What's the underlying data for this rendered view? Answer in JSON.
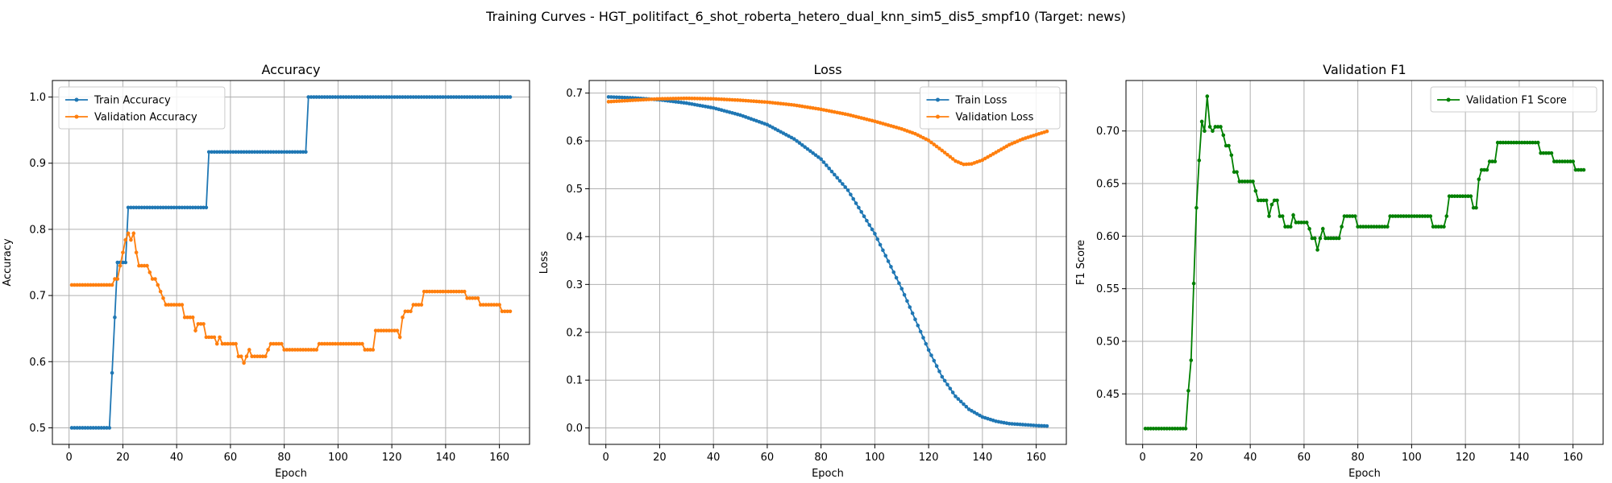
{
  "suptitle": "Training Curves - HGT_politifact_6_shot_roberta_hetero_dual_knn_sim5_dis5_smpf10 (Target: news)",
  "colors": {
    "train": "#1f77b4",
    "val": "#ff7f0e",
    "f1": "#008000",
    "grid": "#b0b0b0"
  },
  "chart_data": [
    {
      "type": "line",
      "title": "Accuracy",
      "xlabel": "Epoch",
      "ylabel": "Accuracy",
      "xlim": [
        -6.2,
        171.2
      ],
      "ylim": [
        0.475,
        1.025
      ],
      "xticks": [
        0,
        20,
        40,
        60,
        80,
        100,
        120,
        140,
        160
      ],
      "yticks": [
        0.5,
        0.6,
        0.7,
        0.8,
        0.9,
        1.0
      ],
      "ytick_labels": [
        "0.5",
        "0.6",
        "0.7",
        "0.8",
        "0.9",
        "1.0"
      ],
      "grid": true,
      "legend": "upper-left",
      "series": [
        {
          "name": "Train Accuracy",
          "color": "#1f77b4",
          "steps": [
            [
              1,
              0.5
            ],
            [
              16,
              0.583
            ],
            [
              17,
              0.667
            ],
            [
              18,
              0.75
            ],
            [
              22,
              0.833
            ],
            [
              52,
              0.917
            ],
            [
              89,
              1.0
            ]
          ]
        },
        {
          "name": "Validation Accuracy",
          "color": "#ff7f0e",
          "steps": [
            [
              1,
              0.716
            ],
            [
              17,
              0.725
            ],
            [
              19,
              0.745
            ],
            [
              20,
              0.765
            ],
            [
              21,
              0.784
            ],
            [
              22,
              0.794
            ],
            [
              23,
              0.784
            ],
            [
              24,
              0.794
            ],
            [
              25,
              0.765
            ],
            [
              26,
              0.745
            ],
            [
              30,
              0.735
            ],
            [
              31,
              0.725
            ],
            [
              33,
              0.716
            ],
            [
              34,
              0.706
            ],
            [
              35,
              0.696
            ],
            [
              36,
              0.686
            ],
            [
              43,
              0.667
            ],
            [
              47,
              0.647
            ],
            [
              48,
              0.657
            ],
            [
              51,
              0.637
            ],
            [
              55,
              0.627
            ],
            [
              56,
              0.637
            ],
            [
              57,
              0.627
            ],
            [
              63,
              0.608
            ],
            [
              65,
              0.598
            ],
            [
              66,
              0.608
            ],
            [
              67,
              0.618
            ],
            [
              68,
              0.608
            ],
            [
              74,
              0.618
            ],
            [
              75,
              0.627
            ],
            [
              80,
              0.618
            ],
            [
              93,
              0.627
            ],
            [
              110,
              0.618
            ],
            [
              114,
              0.647
            ],
            [
              123,
              0.637
            ],
            [
              124,
              0.667
            ],
            [
              125,
              0.676
            ],
            [
              128,
              0.686
            ],
            [
              132,
              0.706
            ],
            [
              148,
              0.696
            ],
            [
              153,
              0.686
            ],
            [
              161,
              0.676
            ]
          ]
        }
      ]
    },
    {
      "type": "line",
      "title": "Loss",
      "xlabel": "Epoch",
      "ylabel": "Loss",
      "xlim": [
        -6.2,
        171.2
      ],
      "ylim": [
        -0.0343,
        0.7263
      ],
      "xticks": [
        0,
        20,
        40,
        60,
        80,
        100,
        120,
        140,
        160
      ],
      "yticks": [
        0.0,
        0.1,
        0.2,
        0.3,
        0.4,
        0.5,
        0.6,
        0.7
      ],
      "ytick_labels": [
        "0.0",
        "0.1",
        "0.2",
        "0.3",
        "0.4",
        "0.5",
        "0.6",
        "0.7"
      ],
      "grid": true,
      "legend": "upper-right",
      "series": [
        {
          "name": "Train Loss",
          "color": "#1f77b4",
          "points": [
            [
              1,
              0.692
            ],
            [
              10,
              0.69
            ],
            [
              20,
              0.686
            ],
            [
              30,
              0.679
            ],
            [
              40,
              0.669
            ],
            [
              50,
              0.654
            ],
            [
              60,
              0.634
            ],
            [
              70,
              0.604
            ],
            [
              80,
              0.562
            ],
            [
              90,
              0.497
            ],
            [
              100,
              0.406
            ],
            [
              110,
              0.291
            ],
            [
              115,
              0.227
            ],
            [
              120,
              0.163
            ],
            [
              125,
              0.107
            ],
            [
              130,
              0.066
            ],
            [
              135,
              0.039
            ],
            [
              140,
              0.023
            ],
            [
              145,
              0.014
            ],
            [
              150,
              0.009
            ],
            [
              155,
              0.007
            ],
            [
              160,
              0.005
            ],
            [
              164,
              0.004
            ]
          ]
        },
        {
          "name": "Validation Loss",
          "color": "#ff7f0e",
          "points": [
            [
              1,
              0.682
            ],
            [
              10,
              0.685
            ],
            [
              20,
              0.688
            ],
            [
              30,
              0.689
            ],
            [
              40,
              0.688
            ],
            [
              50,
              0.685
            ],
            [
              60,
              0.681
            ],
            [
              70,
              0.675
            ],
            [
              80,
              0.666
            ],
            [
              90,
              0.655
            ],
            [
              100,
              0.641
            ],
            [
              110,
              0.625
            ],
            [
              115,
              0.615
            ],
            [
              120,
              0.601
            ],
            [
              125,
              0.58
            ],
            [
              130,
              0.558
            ],
            [
              133,
              0.551
            ],
            [
              136,
              0.552
            ],
            [
              140,
              0.56
            ],
            [
              145,
              0.576
            ],
            [
              150,
              0.592
            ],
            [
              155,
              0.604
            ],
            [
              160,
              0.613
            ],
            [
              164,
              0.62
            ]
          ]
        }
      ]
    },
    {
      "type": "line",
      "title": "Validation F1",
      "xlabel": "Epoch",
      "ylabel": "F1 Score",
      "xlim": [
        -6.2,
        171.2
      ],
      "ylim": [
        0.402,
        0.748
      ],
      "xticks": [
        0,
        20,
        40,
        60,
        80,
        100,
        120,
        140,
        160
      ],
      "yticks": [
        0.45,
        0.5,
        0.55,
        0.6,
        0.65,
        0.7
      ],
      "ytick_labels": [
        "0.45",
        "0.50",
        "0.55",
        "0.60",
        "0.65",
        "0.70"
      ],
      "grid": true,
      "legend": "upper-right",
      "series": [
        {
          "name": "Validation F1 Score",
          "color": "#008000",
          "steps": [
            [
              1,
              0.417
            ],
            [
              17,
              0.453
            ],
            [
              18,
              0.482
            ],
            [
              19,
              0.555
            ],
            [
              20,
              0.627
            ],
            [
              21,
              0.672
            ],
            [
              22,
              0.709
            ],
            [
              23,
              0.7
            ],
            [
              24,
              0.733
            ],
            [
              25,
              0.704
            ],
            [
              26,
              0.7
            ],
            [
              27,
              0.704
            ],
            [
              30,
              0.696
            ],
            [
              31,
              0.686
            ],
            [
              33,
              0.677
            ],
            [
              34,
              0.661
            ],
            [
              36,
              0.652
            ],
            [
              42,
              0.643
            ],
            [
              43,
              0.634
            ],
            [
              47,
              0.619
            ],
            [
              48,
              0.63
            ],
            [
              49,
              0.634
            ],
            [
              51,
              0.619
            ],
            [
              53,
              0.609
            ],
            [
              56,
              0.62
            ],
            [
              57,
              0.613
            ],
            [
              62,
              0.607
            ],
            [
              63,
              0.598
            ],
            [
              65,
              0.587
            ],
            [
              66,
              0.598
            ],
            [
              67,
              0.607
            ],
            [
              68,
              0.598
            ],
            [
              74,
              0.609
            ],
            [
              75,
              0.619
            ],
            [
              80,
              0.609
            ],
            [
              92,
              0.619
            ],
            [
              108,
              0.609
            ],
            [
              113,
              0.619
            ],
            [
              114,
              0.638
            ],
            [
              123,
              0.627
            ],
            [
              125,
              0.654
            ],
            [
              126,
              0.663
            ],
            [
              129,
              0.671
            ],
            [
              132,
              0.689
            ],
            [
              148,
              0.679
            ],
            [
              153,
              0.671
            ],
            [
              161,
              0.663
            ]
          ]
        }
      ]
    }
  ]
}
